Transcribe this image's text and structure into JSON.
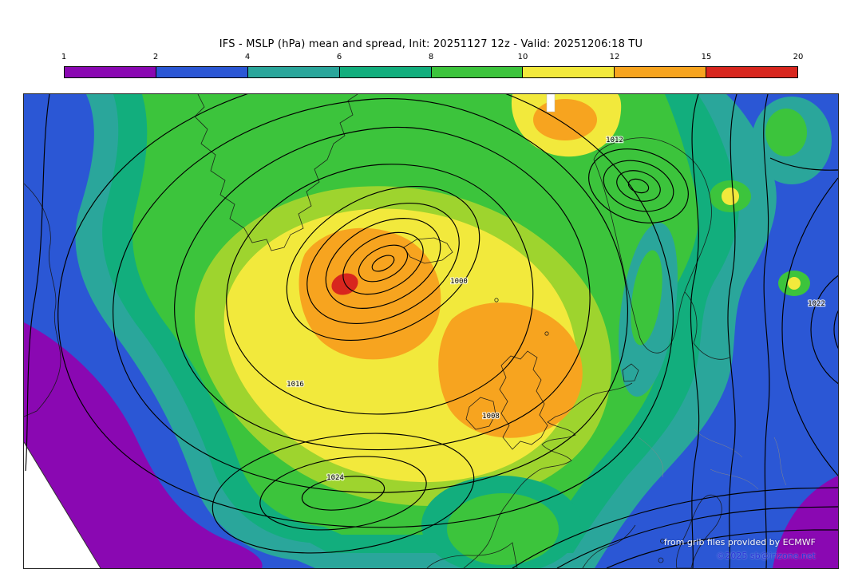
{
  "title": "IFS - MSLP (hPa) mean and spread, Init: 20251127 12z - Valid: 20251206:18 TU",
  "colorbar": {
    "ticks": [
      "1",
      "2",
      "4",
      "6",
      "8",
      "10",
      "12",
      "15",
      "20"
    ],
    "colors": [
      "#8a08b2",
      "#2b57d5",
      "#2aa69b",
      "#12ae7d",
      "#3cc43c",
      "#f2e93c",
      "#f7a41f",
      "#d8261e"
    ]
  },
  "map": {
    "isobar_labels": [
      {
        "value": "1000"
      },
      {
        "value": "1016"
      },
      {
        "value": "1024"
      },
      {
        "value": "1008"
      },
      {
        "value": "1022"
      },
      {
        "value": "1012"
      }
    ]
  },
  "credits": {
    "line1": "from grib files provided by ECMWF",
    "line2": "©2025 sb@irizone.net"
  },
  "chart_data": {
    "type": "heatmap",
    "title": "IFS - MSLP (hPa) mean and spread, Init: 20251127 12z - Valid: 20251206:18 TU",
    "model": "IFS",
    "variable": "MSLP (hPa) mean and spread",
    "init": "20251127 12z",
    "valid": "20251206:18 TU",
    "colorbar": {
      "orientation": "horizontal",
      "position": "top",
      "tick_values": [
        1,
        2,
        4,
        6,
        8,
        10,
        12,
        15,
        20
      ],
      "segment_colors": [
        "#8a08b2",
        "#2b57d5",
        "#2aa69b",
        "#12ae7d",
        "#3cc43c",
        "#f2e93c",
        "#f7a41f",
        "#d8261e"
      ],
      "units": "hPa (ensemble spread)"
    },
    "contour_labels_hPa": [
      1000,
      1008,
      1016,
      1022,
      1024,
      1012
    ],
    "spread_max_band": "red (>15 hPa), small core in central North Atlantic",
    "low_spread_bands": "purple/blue (<4 hPa) along west and east edges"
  }
}
